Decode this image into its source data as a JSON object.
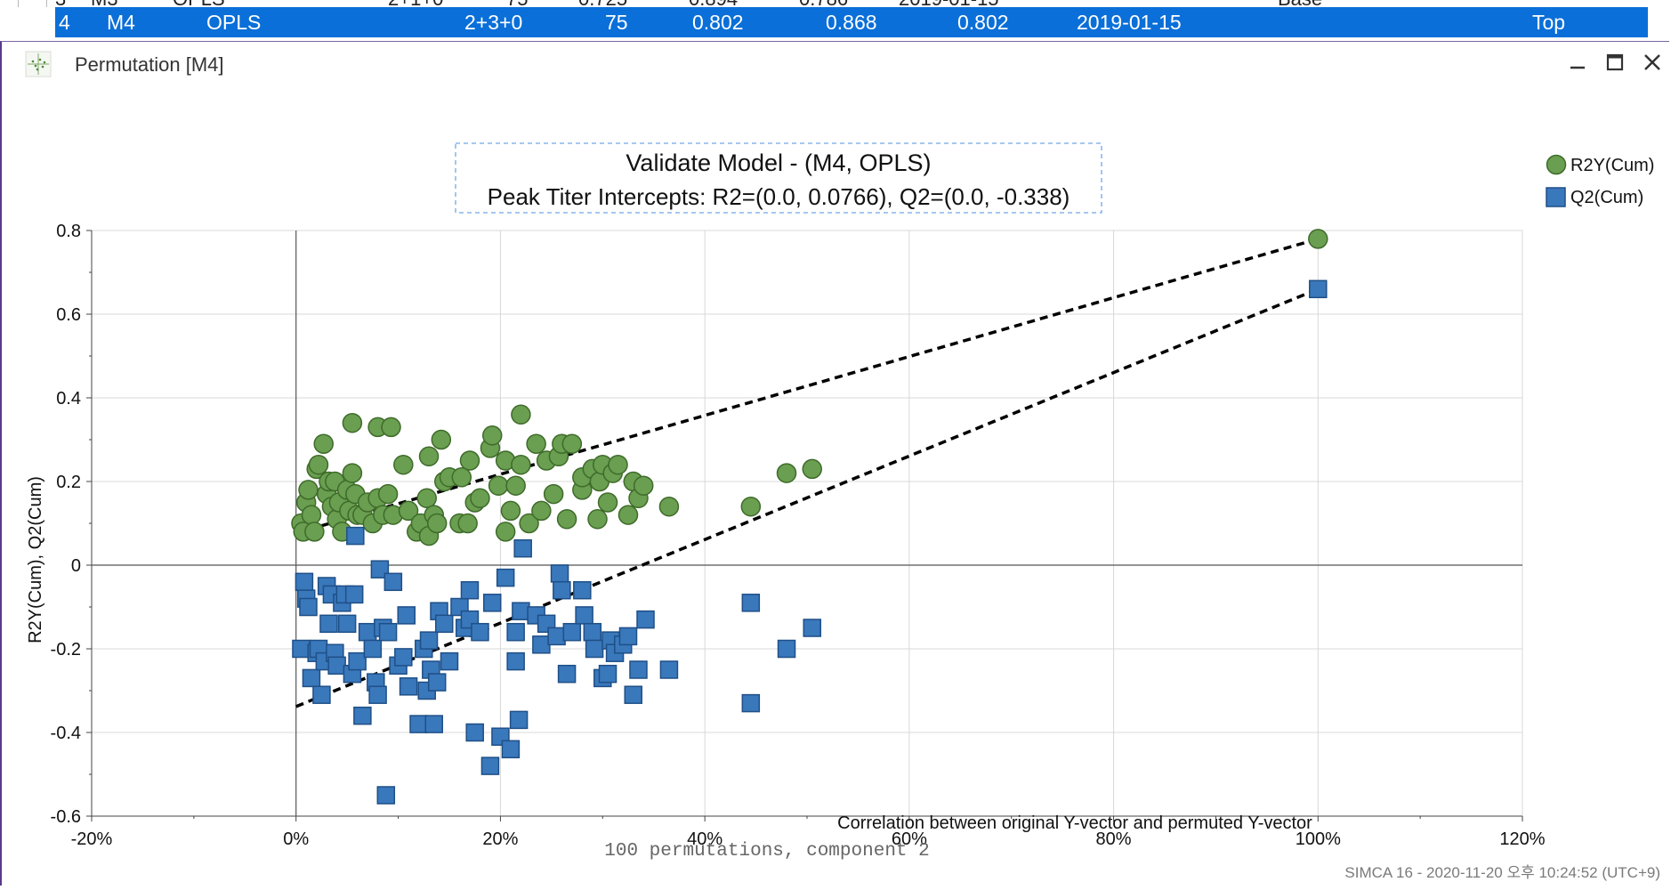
{
  "table": {
    "selected_row": {
      "no": "4",
      "model": "M4",
      "type": "OPLS",
      "components": "2+3+0",
      "n": "75",
      "r2x": "0.802",
      "r2y": "0.868",
      "q2": "0.802",
      "date": "2019-01-15",
      "status": "Top"
    }
  },
  "window": {
    "title": "Permutation [M4]",
    "footer": "SIMCA 16 - 2020-11-20 오후 10:24:52 (UTC+9)"
  },
  "colors": {
    "r2y": "#6a9e50",
    "r2y_edge": "#3e6b2a",
    "q2": "#3a78bc",
    "q2_edge": "#1f4f86",
    "selection": "#0a6fd8"
  },
  "chart_data": {
    "type": "scatter",
    "title": "Validate Model - (M4, OPLS)",
    "subtitle": "Peak Titer Intercepts: R2=(0.0, 0.0766), Q2=(0.0, -0.338)",
    "xlabel": "Correlation between original Y-vector and permuted Y-vector",
    "ylabel": "R2Y(Cum), Q2(Cum)",
    "note": "100 permutations, component 2",
    "xlim": [
      -0.2,
      1.2
    ],
    "ylim": [
      -0.6,
      0.8
    ],
    "x_ticks": [
      -0.2,
      0,
      0.2,
      0.4,
      0.6,
      0.8,
      1.0,
      1.2
    ],
    "x_tick_labels": [
      "-20%",
      "0%",
      "20%",
      "40%",
      "60%",
      "80%",
      "100%",
      "120%"
    ],
    "y_ticks": [
      -0.6,
      -0.4,
      -0.2,
      0,
      0.2,
      0.4,
      0.6,
      0.8
    ],
    "y_tick_labels": [
      "-0.6",
      "-0.4",
      "-0.2",
      "0",
      "0.2",
      "0.4",
      "0.6",
      "0.8"
    ],
    "legend_position": "top-right",
    "series": [
      {
        "name": "R2Y(Cum)",
        "marker": "circle",
        "points": [
          [
            0.005,
            0.1
          ],
          [
            0.007,
            0.08
          ],
          [
            0.01,
            0.15
          ],
          [
            0.012,
            0.18
          ],
          [
            0.015,
            0.12
          ],
          [
            0.018,
            0.08
          ],
          [
            0.02,
            0.23
          ],
          [
            0.022,
            0.24
          ],
          [
            0.027,
            0.29
          ],
          [
            0.03,
            0.17
          ],
          [
            0.032,
            0.2
          ],
          [
            0.035,
            0.14
          ],
          [
            0.038,
            0.2
          ],
          [
            0.04,
            0.11
          ],
          [
            0.042,
            0.15
          ],
          [
            0.045,
            0.08
          ],
          [
            0.05,
            0.18
          ],
          [
            0.052,
            0.13
          ],
          [
            0.055,
            0.22
          ],
          [
            0.055,
            0.34
          ],
          [
            0.058,
            0.17
          ],
          [
            0.06,
            0.12
          ],
          [
            0.065,
            0.12
          ],
          [
            0.07,
            0.15
          ],
          [
            0.075,
            0.1
          ],
          [
            0.08,
            0.16
          ],
          [
            0.08,
            0.33
          ],
          [
            0.085,
            0.12
          ],
          [
            0.09,
            0.17
          ],
          [
            0.093,
            0.33
          ],
          [
            0.095,
            0.12
          ],
          [
            0.105,
            0.24
          ],
          [
            0.11,
            0.13
          ],
          [
            0.118,
            0.08
          ],
          [
            0.122,
            0.1
          ],
          [
            0.128,
            0.16
          ],
          [
            0.13,
            0.07
          ],
          [
            0.13,
            0.26
          ],
          [
            0.135,
            0.12
          ],
          [
            0.138,
            0.1
          ],
          [
            0.142,
            0.3
          ],
          [
            0.145,
            0.2
          ],
          [
            0.15,
            0.21
          ],
          [
            0.16,
            0.1
          ],
          [
            0.162,
            0.21
          ],
          [
            0.168,
            0.1
          ],
          [
            0.17,
            0.25
          ],
          [
            0.175,
            0.15
          ],
          [
            0.18,
            0.16
          ],
          [
            0.19,
            0.28
          ],
          [
            0.192,
            0.31
          ],
          [
            0.198,
            0.19
          ],
          [
            0.205,
            0.25
          ],
          [
            0.205,
            0.08
          ],
          [
            0.21,
            0.13
          ],
          [
            0.215,
            0.19
          ],
          [
            0.22,
            0.24
          ],
          [
            0.22,
            0.36
          ],
          [
            0.228,
            0.1
          ],
          [
            0.235,
            0.29
          ],
          [
            0.24,
            0.13
          ],
          [
            0.245,
            0.25
          ],
          [
            0.252,
            0.17
          ],
          [
            0.257,
            0.26
          ],
          [
            0.26,
            0.29
          ],
          [
            0.265,
            0.11
          ],
          [
            0.27,
            0.29
          ],
          [
            0.28,
            0.18
          ],
          [
            0.28,
            0.21
          ],
          [
            0.29,
            0.23
          ],
          [
            0.295,
            0.11
          ],
          [
            0.297,
            0.2
          ],
          [
            0.3,
            0.24
          ],
          [
            0.305,
            0.15
          ],
          [
            0.31,
            0.22
          ],
          [
            0.315,
            0.24
          ],
          [
            0.325,
            0.12
          ],
          [
            0.33,
            0.2
          ],
          [
            0.335,
            0.16
          ],
          [
            0.34,
            0.19
          ],
          [
            0.365,
            0.14
          ],
          [
            0.445,
            0.14
          ],
          [
            0.48,
            0.22
          ],
          [
            0.505,
            0.23
          ],
          [
            1.0,
            0.78
          ]
        ]
      },
      {
        "name": "Q2(Cum)",
        "marker": "square",
        "points": [
          [
            0.005,
            -0.2
          ],
          [
            0.008,
            -0.04
          ],
          [
            0.01,
            -0.08
          ],
          [
            0.012,
            -0.1
          ],
          [
            0.015,
            -0.27
          ],
          [
            0.02,
            -0.21
          ],
          [
            0.022,
            -0.2
          ],
          [
            0.025,
            -0.31
          ],
          [
            0.028,
            -0.23
          ],
          [
            0.03,
            -0.05
          ],
          [
            0.032,
            -0.14
          ],
          [
            0.035,
            -0.07
          ],
          [
            0.038,
            -0.21
          ],
          [
            0.04,
            -0.24
          ],
          [
            0.045,
            -0.09
          ],
          [
            0.048,
            -0.07
          ],
          [
            0.05,
            -0.14
          ],
          [
            0.055,
            -0.26
          ],
          [
            0.057,
            -0.07
          ],
          [
            0.058,
            0.07
          ],
          [
            0.06,
            -0.23
          ],
          [
            0.065,
            -0.36
          ],
          [
            0.07,
            -0.16
          ],
          [
            0.075,
            -0.2
          ],
          [
            0.078,
            -0.28
          ],
          [
            0.08,
            -0.31
          ],
          [
            0.082,
            -0.01
          ],
          [
            0.085,
            -0.15
          ],
          [
            0.088,
            -0.55
          ],
          [
            0.09,
            -0.16
          ],
          [
            0.095,
            -0.04
          ],
          [
            0.1,
            -0.24
          ],
          [
            0.105,
            -0.22
          ],
          [
            0.108,
            -0.12
          ],
          [
            0.11,
            -0.29
          ],
          [
            0.12,
            -0.38
          ],
          [
            0.125,
            -0.2
          ],
          [
            0.128,
            -0.3
          ],
          [
            0.13,
            -0.18
          ],
          [
            0.132,
            -0.25
          ],
          [
            0.135,
            -0.38
          ],
          [
            0.138,
            -0.28
          ],
          [
            0.14,
            -0.11
          ],
          [
            0.145,
            -0.14
          ],
          [
            0.15,
            -0.23
          ],
          [
            0.16,
            -0.1
          ],
          [
            0.165,
            -0.15
          ],
          [
            0.17,
            -0.06
          ],
          [
            0.17,
            -0.13
          ],
          [
            0.175,
            -0.4
          ],
          [
            0.18,
            -0.16
          ],
          [
            0.19,
            -0.48
          ],
          [
            0.192,
            -0.09
          ],
          [
            0.2,
            -0.41
          ],
          [
            0.205,
            -0.03
          ],
          [
            0.21,
            -0.44
          ],
          [
            0.215,
            -0.16
          ],
          [
            0.215,
            -0.23
          ],
          [
            0.218,
            -0.37
          ],
          [
            0.22,
            -0.11
          ],
          [
            0.222,
            0.04
          ],
          [
            0.235,
            -0.12
          ],
          [
            0.24,
            -0.19
          ],
          [
            0.245,
            -0.14
          ],
          [
            0.255,
            -0.17
          ],
          [
            0.258,
            -0.02
          ],
          [
            0.26,
            -0.06
          ],
          [
            0.265,
            -0.26
          ],
          [
            0.27,
            -0.16
          ],
          [
            0.28,
            -0.06
          ],
          [
            0.282,
            -0.12
          ],
          [
            0.29,
            -0.16
          ],
          [
            0.292,
            -0.2
          ],
          [
            0.3,
            -0.27
          ],
          [
            0.305,
            -0.26
          ],
          [
            0.308,
            -0.18
          ],
          [
            0.312,
            -0.21
          ],
          [
            0.32,
            -0.19
          ],
          [
            0.325,
            -0.17
          ],
          [
            0.33,
            -0.31
          ],
          [
            0.335,
            -0.25
          ],
          [
            0.342,
            -0.13
          ],
          [
            0.365,
            -0.25
          ],
          [
            0.445,
            -0.09
          ],
          [
            0.445,
            -0.33
          ],
          [
            0.48,
            -0.2
          ],
          [
            0.505,
            -0.15
          ],
          [
            1.0,
            0.66
          ]
        ]
      }
    ],
    "regression_lines": [
      {
        "name": "R2 intercept line",
        "from": [
          0.0,
          0.0766
        ],
        "to": [
          1.0,
          0.78
        ]
      },
      {
        "name": "Q2 intercept line",
        "from": [
          0.0,
          -0.338
        ],
        "to": [
          1.0,
          0.66
        ]
      }
    ]
  }
}
